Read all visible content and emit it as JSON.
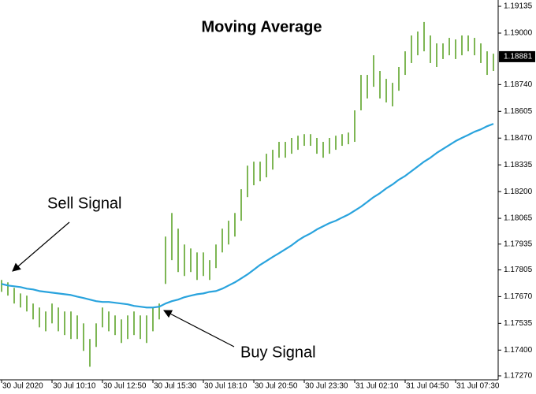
{
  "chart_data": {
    "type": "range",
    "title": "Moving Average",
    "annotations": [
      "Sell Signal",
      "Buy Signal"
    ],
    "categories": [
      "30 Jul 2020",
      null,
      null,
      null,
      null,
      null,
      null,
      null,
      "30 Jul 10:10",
      null,
      null,
      null,
      null,
      null,
      null,
      null,
      "30 Jul 12:50",
      null,
      null,
      null,
      null,
      null,
      null,
      null,
      "30 Jul 15:30",
      null,
      null,
      null,
      null,
      null,
      null,
      null,
      "30 Jul 18:10",
      null,
      null,
      null,
      null,
      null,
      null,
      null,
      "30 Jul 20:50",
      null,
      null,
      null,
      null,
      null,
      null,
      null,
      "30 Jul 23:30",
      null,
      null,
      null,
      null,
      null,
      null,
      null,
      "31 Jul 02:10",
      null,
      null,
      null,
      null,
      null,
      null,
      null,
      "31 Jul 04:50",
      null,
      null,
      null,
      null,
      null,
      null,
      null,
      "31 Jul 07:30",
      null,
      null,
      null,
      null,
      null,
      null
    ],
    "bars": {
      "color": "#5da329",
      "high": [
        1.17754,
        1.17742,
        1.17714,
        1.17686,
        1.17675,
        1.17635,
        1.17615,
        1.17595,
        1.17635,
        1.17615,
        1.17595,
        1.17595,
        1.17575,
        1.17535,
        1.17456,
        1.17535,
        1.17615,
        1.17595,
        1.17575,
        1.17555,
        1.17575,
        1.17595,
        1.17575,
        1.17575,
        1.17615,
        1.17635,
        1.17973,
        1.18092,
        1.18013,
        1.17933,
        1.17913,
        1.17893,
        1.17893,
        1.17854,
        1.17933,
        1.18013,
        1.18053,
        1.18092,
        1.18212,
        1.18331,
        1.18351,
        1.18351,
        1.18391,
        1.18411,
        1.18451,
        1.18451,
        1.18471,
        1.18482,
        1.1849,
        1.1849,
        1.18471,
        1.18451,
        1.18471,
        1.18482,
        1.1849,
        1.18498,
        1.1861,
        1.18789,
        1.18789,
        1.18888,
        1.18809,
        1.18769,
        1.18749,
        1.18829,
        1.18908,
        1.18988,
        1.19008,
        1.19056,
        1.18988,
        1.18948,
        1.18948,
        1.18976,
        1.18968,
        1.18988,
        1.18988,
        1.18976,
        1.18948,
        1.18908,
        1.18896
      ],
      "low": [
        1.17694,
        1.17675,
        1.17635,
        1.17615,
        1.17595,
        1.17555,
        1.17515,
        1.17495,
        1.17535,
        1.17495,
        1.17476,
        1.17456,
        1.17456,
        1.17396,
        1.17316,
        1.17416,
        1.17515,
        1.17495,
        1.17476,
        1.17436,
        1.17456,
        1.17476,
        1.17456,
        1.17436,
        1.17495,
        1.17555,
        1.17734,
        1.17854,
        1.17794,
        1.17774,
        1.17794,
        1.17754,
        1.17774,
        1.17754,
        1.17814,
        1.17893,
        1.17933,
        1.17973,
        1.18053,
        1.18172,
        1.18232,
        1.18252,
        1.18272,
        1.18311,
        1.18371,
        1.18371,
        1.18391,
        1.18411,
        1.18431,
        1.18431,
        1.18391,
        1.18371,
        1.18391,
        1.18411,
        1.18431,
        1.18439,
        1.18451,
        1.1861,
        1.1867,
        1.18729,
        1.1867,
        1.1865,
        1.1863,
        1.18709,
        1.18789,
        1.18849,
        1.18888,
        1.18908,
        1.18849,
        1.18829,
        1.18869,
        1.18888,
        1.18869,
        1.18888,
        1.18908,
        1.18888,
        1.18849,
        1.18789,
        1.18809
      ]
    },
    "moving_average": {
      "color": "#29a3dd",
      "values": [
        1.17734,
        1.17726,
        1.17722,
        1.17718,
        1.1771,
        1.17706,
        1.17698,
        1.17694,
        1.1769,
        1.17686,
        1.17682,
        1.17678,
        1.1767,
        1.17663,
        1.17655,
        1.17647,
        1.17643,
        1.17643,
        1.17639,
        1.17635,
        1.17631,
        1.17623,
        1.17619,
        1.17615,
        1.17615,
        1.17619,
        1.17635,
        1.17647,
        1.17655,
        1.17667,
        1.17675,
        1.17682,
        1.17686,
        1.17694,
        1.17698,
        1.1771,
        1.17726,
        1.17742,
        1.17762,
        1.17782,
        1.17806,
        1.1783,
        1.1785,
        1.1787,
        1.17889,
        1.17909,
        1.17929,
        1.17953,
        1.17973,
        1.17989,
        1.18009,
        1.18025,
        1.18041,
        1.18053,
        1.18069,
        1.18084,
        1.18104,
        1.18124,
        1.18148,
        1.18172,
        1.18192,
        1.18216,
        1.18236,
        1.1826,
        1.18279,
        1.18303,
        1.18327,
        1.18351,
        1.18371,
        1.18395,
        1.18415,
        1.18435,
        1.18455,
        1.18471,
        1.18486,
        1.18502,
        1.18514,
        1.1853,
        1.18542
      ]
    },
    "current_price": {
      "value": 1.18881,
      "label": "1.18881"
    },
    "ylim": [
      1.1725,
      1.19167
    ],
    "yticks": [
      {
        "value": 1.19135,
        "label": "1.19135"
      },
      {
        "value": 1.19,
        "label": "1.19000"
      },
      {
        "value": 1.1874,
        "label": "1.18740"
      },
      {
        "value": 1.18605,
        "label": "1.18605"
      },
      {
        "value": 1.1847,
        "label": "1.18470"
      },
      {
        "value": 1.18335,
        "label": "1.18335"
      },
      {
        "value": 1.182,
        "label": "1.18200"
      },
      {
        "value": 1.18065,
        "label": "1.18065"
      },
      {
        "value": 1.17935,
        "label": "1.17935"
      },
      {
        "value": 1.17805,
        "label": "1.17805"
      },
      {
        "value": 1.1767,
        "label": "1.17670"
      },
      {
        "value": 1.17535,
        "label": "1.17535"
      },
      {
        "value": 1.174,
        "label": "1.17400"
      },
      {
        "value": 1.1727,
        "label": "1.17270"
      }
    ],
    "grid": false
  }
}
